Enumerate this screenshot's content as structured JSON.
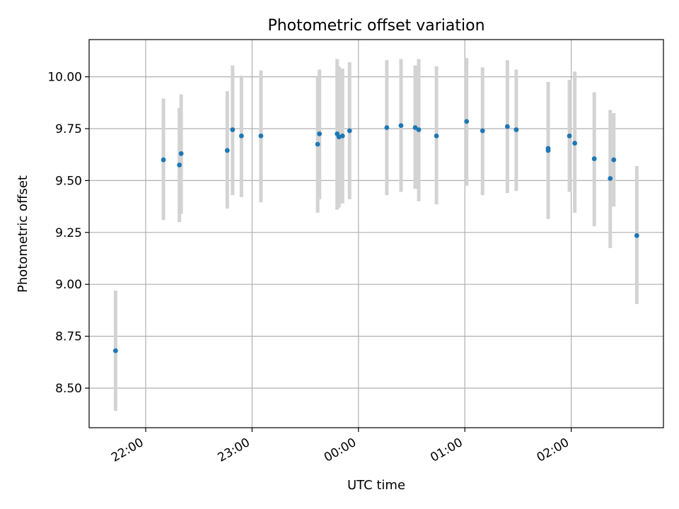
{
  "chart_data": {
    "type": "scatter",
    "title": "Photometric offset variation",
    "xlabel": "UTC time",
    "ylabel": "Photometric offset",
    "x_ticks": [
      "22:00",
      "23:00",
      "00:00",
      "01:00",
      "02:00"
    ],
    "y_ticks": [
      "8.50",
      "8.75",
      "9.00",
      "9.25",
      "9.50",
      "9.75",
      "10.00"
    ],
    "ylim": [
      8.31,
      10.18
    ],
    "xlim": [
      "21:52",
      "02:45"
    ],
    "grid": true,
    "colors": {
      "point": "#1f77b4",
      "errorbar": "#d3d3d3",
      "grid": "#b0b0b0"
    },
    "points": [
      {
        "x": "21:43",
        "y": 8.68,
        "ylow": 8.39,
        "yhigh": 8.97
      },
      {
        "x": "22:10",
        "y": 9.6,
        "ylow": 9.31,
        "yhigh": 9.895
      },
      {
        "x": "22:19",
        "y": 9.575,
        "ylow": 9.3,
        "yhigh": 9.85
      },
      {
        "x": "22:20",
        "y": 9.63,
        "ylow": 9.34,
        "yhigh": 9.915
      },
      {
        "x": "22:46",
        "y": 9.645,
        "ylow": 9.365,
        "yhigh": 9.93
      },
      {
        "x": "22:49",
        "y": 9.745,
        "ylow": 9.43,
        "yhigh": 10.055
      },
      {
        "x": "22:54",
        "y": 9.715,
        "ylow": 9.42,
        "yhigh": 10.005
      },
      {
        "x": "23:05",
        "y": 9.715,
        "ylow": 9.395,
        "yhigh": 10.03
      },
      {
        "x": "23:37",
        "y": 9.675,
        "ylow": 9.345,
        "yhigh": 10.005
      },
      {
        "x": "23:38",
        "y": 9.725,
        "ylow": 9.41,
        "yhigh": 10.035
      },
      {
        "x": "23:48",
        "y": 9.725,
        "ylow": 9.36,
        "yhigh": 10.085
      },
      {
        "x": "23:49",
        "y": 9.71,
        "ylow": 9.37,
        "yhigh": 10.05
      },
      {
        "x": "23:51",
        "y": 9.715,
        "ylow": 9.39,
        "yhigh": 10.04
      },
      {
        "x": "23:55",
        "y": 9.74,
        "ylow": 9.41,
        "yhigh": 10.07
      },
      {
        "x": "00:16",
        "y": 9.755,
        "ylow": 9.43,
        "yhigh": 10.08
      },
      {
        "x": "00:24",
        "y": 9.765,
        "ylow": 9.445,
        "yhigh": 10.085
      },
      {
        "x": "00:32",
        "y": 9.755,
        "ylow": 9.46,
        "yhigh": 10.055
      },
      {
        "x": "00:34",
        "y": 9.745,
        "ylow": 9.4,
        "yhigh": 10.085
      },
      {
        "x": "00:44",
        "y": 9.715,
        "ylow": 9.385,
        "yhigh": 10.05
      },
      {
        "x": "01:01",
        "y": 9.785,
        "ylow": 9.475,
        "yhigh": 10.09
      },
      {
        "x": "01:10",
        "y": 9.74,
        "ylow": 9.43,
        "yhigh": 10.045
      },
      {
        "x": "01:24",
        "y": 9.76,
        "ylow": 9.44,
        "yhigh": 10.08
      },
      {
        "x": "01:29",
        "y": 9.745,
        "ylow": 9.45,
        "yhigh": 10.035
      },
      {
        "x": "01:47",
        "y": 9.645,
        "ylow": 9.315,
        "yhigh": 9.975
      },
      {
        "x": "01:47",
        "y": 9.655,
        "ylow": 9.35,
        "yhigh": 9.965
      },
      {
        "x": "01:59",
        "y": 9.715,
        "ylow": 9.445,
        "yhigh": 9.985
      },
      {
        "x": "02:02",
        "y": 9.68,
        "ylow": 9.345,
        "yhigh": 10.025
      },
      {
        "x": "02:13",
        "y": 9.605,
        "ylow": 9.28,
        "yhigh": 9.925
      },
      {
        "x": "02:22",
        "y": 9.51,
        "ylow": 9.175,
        "yhigh": 9.84
      },
      {
        "x": "02:24",
        "y": 9.6,
        "ylow": 9.375,
        "yhigh": 9.825
      },
      {
        "x": "02:37",
        "y": 9.235,
        "ylow": 8.905,
        "yhigh": 9.57
      }
    ]
  }
}
